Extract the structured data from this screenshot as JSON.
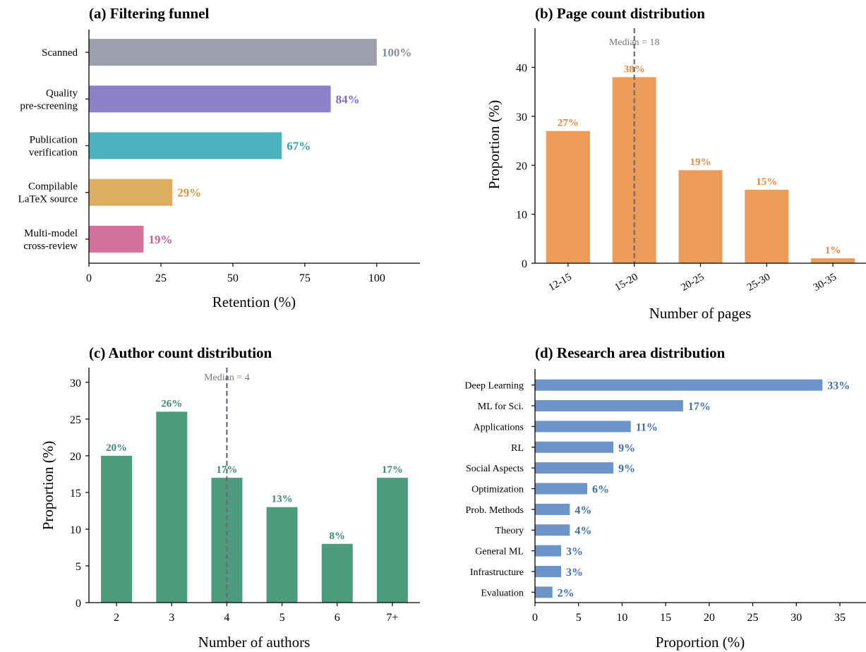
{
  "colors": {
    "funnel": [
      "#9d9fae",
      "#8c82cb",
      "#4bb3bf",
      "#dcae5d",
      "#d3739d"
    ],
    "pages": "#ec9b58",
    "pages_label": "#e38b40",
    "authors": "#4e9c7e",
    "authors_label": "#3d8a6d",
    "areas": "#6c94c8",
    "areas_label": "#3f6fb0",
    "funnel_labels": [
      "#8a8d9c",
      "#7b6dc0",
      "#2ea3b0",
      "#cc9a3c",
      "#c85f8c"
    ],
    "median_line": "#6b6b7a"
  },
  "chart_data": [
    {
      "id": "a",
      "type": "bar",
      "orientation": "horizontal",
      "title": "(a) Filtering funnel",
      "xlabel": "Retention (%)",
      "ylabel": "",
      "categories": [
        "Scanned",
        "Quality\npre-screening",
        "Publication\nverification",
        "Compilable\nLaTeX source",
        "Multi-model\ncross-review"
      ],
      "values": [
        100,
        84,
        67,
        29,
        19
      ],
      "data_labels": [
        "100%",
        "84%",
        "67%",
        "29%",
        "19%"
      ],
      "xlim": [
        0,
        115
      ],
      "xticks": [
        0,
        25,
        50,
        75,
        100
      ],
      "xtick_labels": [
        "0",
        "25",
        "50",
        "75",
        "100"
      ]
    },
    {
      "id": "b",
      "type": "bar",
      "title": "(b) Page count distribution",
      "xlabel": "Number of pages",
      "ylabel": "Proportion (%)",
      "categories": [
        "12-15",
        "15-20",
        "20-25",
        "25-30",
        "30-35"
      ],
      "values": [
        27,
        38,
        19,
        15,
        1
      ],
      "data_labels": [
        "27%",
        "38%",
        "19%",
        "15%",
        "1%"
      ],
      "ylim": [
        0,
        48
      ],
      "yticks": [
        0,
        10,
        20,
        30,
        40
      ],
      "ytick_labels": [
        "0",
        "10",
        "20",
        "30",
        "40"
      ],
      "median_position": 1,
      "median_label": "Median = 18"
    },
    {
      "id": "c",
      "type": "bar",
      "title": "(c) Author count distribution",
      "xlabel": "Number of authors",
      "ylabel": "Proportion (%)",
      "categories": [
        "2",
        "3",
        "4",
        "5",
        "6",
        "7+"
      ],
      "values": [
        20,
        26,
        17,
        13,
        8,
        17
      ],
      "data_labels": [
        "20%",
        "26%",
        "17%",
        "13%",
        "8%",
        "17%"
      ],
      "ylim": [
        0,
        32
      ],
      "yticks": [
        0,
        5,
        10,
        15,
        20,
        25,
        30
      ],
      "ytick_labels": [
        "0",
        "5",
        "10",
        "15",
        "20",
        "25",
        "30"
      ],
      "median_position": 2,
      "median_label": "Median = 4"
    },
    {
      "id": "d",
      "type": "bar",
      "orientation": "horizontal",
      "title": "(d) Research area distribution",
      "xlabel": "Proportion (%)",
      "ylabel": "",
      "categories": [
        "Deep Learning",
        "ML for Sci.",
        "Applications",
        "RL",
        "Social Aspects",
        "Optimization",
        "Prob. Methods",
        "Theory",
        "General ML",
        "Infrastructure",
        "Evaluation"
      ],
      "values": [
        33,
        17,
        11,
        9,
        9,
        6,
        4,
        4,
        3,
        3,
        2
      ],
      "data_labels": [
        "33%",
        "17%",
        "11%",
        "9%",
        "9%",
        "6%",
        "4%",
        "4%",
        "3%",
        "3%",
        "2%"
      ],
      "xlim": [
        0,
        38
      ],
      "xticks": [
        0,
        5,
        10,
        15,
        20,
        25,
        30,
        35
      ],
      "xtick_labels": [
        "0",
        "5",
        "10",
        "15",
        "20",
        "25",
        "30",
        "35"
      ]
    }
  ]
}
